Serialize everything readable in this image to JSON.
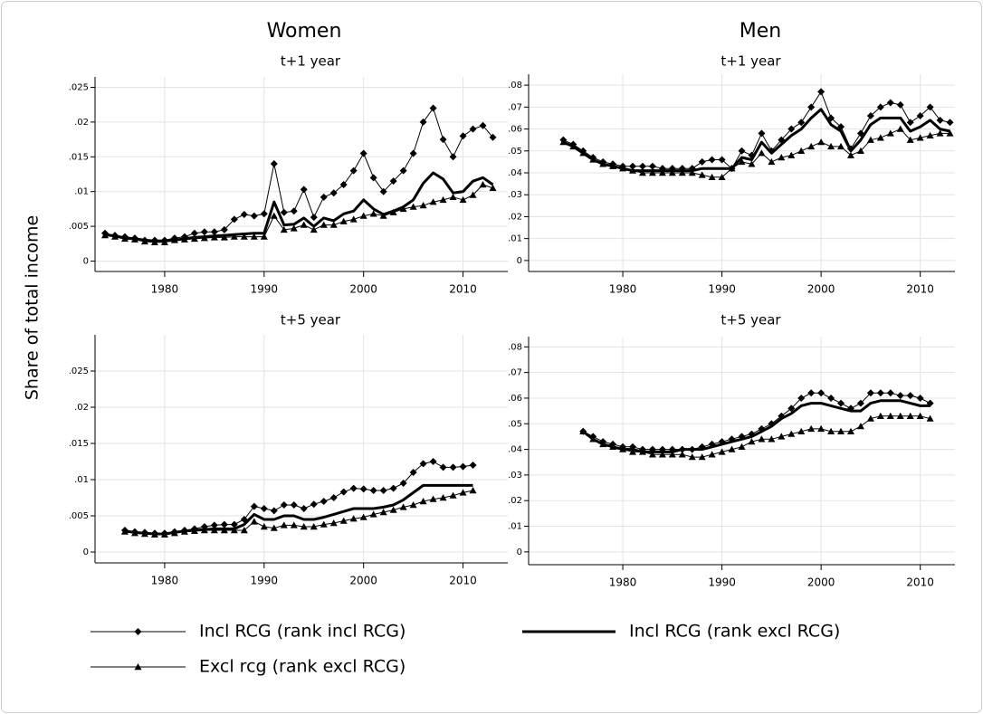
{
  "figure": {
    "column_titles": [
      "Women",
      "Men"
    ],
    "y_label": "Share of total income"
  },
  "chart_data": [
    {
      "type": "line",
      "title": "t+1 year",
      "grid": true,
      "x": [
        1974,
        1975,
        1976,
        1977,
        1978,
        1979,
        1980,
        1981,
        1982,
        1983,
        1984,
        1985,
        1986,
        1987,
        1988,
        1989,
        1990,
        1991,
        1992,
        1993,
        1994,
        1995,
        1996,
        1997,
        1998,
        1999,
        2000,
        2001,
        2002,
        2003,
        2004,
        2005,
        2006,
        2007,
        2008,
        2009,
        2010,
        2011,
        2012,
        2013
      ],
      "xlim": [
        1973,
        2014.5
      ],
      "xticks": [
        1980,
        1990,
        2000,
        2010
      ],
      "ylim": [
        -0.0015,
        0.0265
      ],
      "yticks": [
        0,
        {
          "value": 0.005,
          "label": ".005"
        },
        {
          "value": 0.01,
          "label": ".01"
        },
        {
          "value": 0.015,
          "label": ".015"
        },
        {
          "value": 0.02,
          "label": ".02"
        },
        {
          "value": 0.025,
          "label": ".025"
        }
      ],
      "series": [
        {
          "name": "Incl RCG (rank incl RCG)",
          "color": "#000000",
          "marker": "diamond",
          "line_width": 1,
          "values": [
            0.004,
            0.0037,
            0.0035,
            0.0033,
            0.003,
            0.003,
            0.003,
            0.0033,
            0.0035,
            0.004,
            0.0042,
            0.0042,
            0.0045,
            0.006,
            0.0067,
            0.0065,
            0.0068,
            0.014,
            0.007,
            0.0072,
            0.0103,
            0.0063,
            0.0092,
            0.0098,
            0.011,
            0.013,
            0.0155,
            0.012,
            0.01,
            0.0115,
            0.013,
            0.0155,
            0.02,
            0.022,
            0.0175,
            0.015,
            0.018,
            0.019,
            0.0195,
            0.0178
          ]
        },
        {
          "name": "Incl RCG (rank excl RCG)",
          "color": "#000000",
          "marker": "none",
          "line_width": 3,
          "values": [
            0.0038,
            0.0036,
            0.0033,
            0.0032,
            0.003,
            0.0029,
            0.0029,
            0.003,
            0.0032,
            0.0034,
            0.0035,
            0.0036,
            0.0037,
            0.0038,
            0.0039,
            0.004,
            0.004,
            0.0085,
            0.0052,
            0.0053,
            0.0062,
            0.005,
            0.0062,
            0.0058,
            0.0068,
            0.0072,
            0.0088,
            0.0075,
            0.0067,
            0.0072,
            0.0078,
            0.0088,
            0.0112,
            0.0127,
            0.0118,
            0.0098,
            0.01,
            0.0115,
            0.012,
            0.011
          ]
        },
        {
          "name": "Excl rcg (rank excl RCG)",
          "color": "#000000",
          "marker": "triangle",
          "line_width": 1,
          "values": [
            0.0037,
            0.0035,
            0.0032,
            0.0031,
            0.0028,
            0.0027,
            0.0027,
            0.003,
            0.0031,
            0.0032,
            0.0033,
            0.0034,
            0.0034,
            0.0035,
            0.0035,
            0.0035,
            0.0035,
            0.0065,
            0.0045,
            0.0047,
            0.0052,
            0.0045,
            0.0052,
            0.0052,
            0.0057,
            0.006,
            0.0065,
            0.0068,
            0.0065,
            0.007,
            0.0075,
            0.0078,
            0.008,
            0.0085,
            0.0088,
            0.0092,
            0.0088,
            0.0095,
            0.011,
            0.0105
          ]
        }
      ]
    },
    {
      "type": "line",
      "title": "t+1 year",
      "grid": true,
      "x": [
        1974,
        1975,
        1976,
        1977,
        1978,
        1979,
        1980,
        1981,
        1982,
        1983,
        1984,
        1985,
        1986,
        1987,
        1988,
        1989,
        1990,
        1991,
        1992,
        1993,
        1994,
        1995,
        1996,
        1997,
        1998,
        1999,
        2000,
        2001,
        2002,
        2003,
        2004,
        2005,
        2006,
        2007,
        2008,
        2009,
        2010,
        2011,
        2012,
        2013
      ],
      "xlim": [
        1970.5,
        2013.5
      ],
      "xticks": [
        1980,
        1990,
        2000,
        2010
      ],
      "ylim": [
        -0.005,
        0.085
      ],
      "yticks": [
        0,
        {
          "value": 0.01,
          "label": ".01"
        },
        {
          "value": 0.02,
          "label": ".02"
        },
        {
          "value": 0.03,
          "label": ".03"
        },
        {
          "value": 0.04,
          "label": ".04"
        },
        {
          "value": 0.05,
          "label": ".05"
        },
        {
          "value": 0.06,
          "label": ".06"
        },
        {
          "value": 0.07,
          "label": ".07"
        },
        {
          "value": 0.08,
          "label": ".08"
        }
      ],
      "series": [
        {
          "name": "Incl RCG (rank incl RCG)",
          "color": "#000000",
          "marker": "diamond",
          "line_width": 1,
          "values": [
            0.055,
            0.053,
            0.05,
            0.047,
            0.045,
            0.044,
            0.043,
            0.043,
            0.043,
            0.043,
            0.042,
            0.042,
            0.042,
            0.042,
            0.045,
            0.046,
            0.046,
            0.042,
            0.05,
            0.048,
            0.058,
            0.05,
            0.055,
            0.06,
            0.063,
            0.07,
            0.077,
            0.065,
            0.061,
            0.051,
            0.058,
            0.066,
            0.07,
            0.072,
            0.071,
            0.063,
            0.066,
            0.07,
            0.064,
            0.063
          ]
        },
        {
          "name": "Incl RCG (rank excl RCG)",
          "color": "#000000",
          "marker": "none",
          "line_width": 3,
          "values": [
            0.054,
            0.052,
            0.049,
            0.046,
            0.044,
            0.043,
            0.042,
            0.041,
            0.041,
            0.041,
            0.041,
            0.041,
            0.041,
            0.041,
            0.042,
            0.042,
            0.042,
            0.042,
            0.047,
            0.046,
            0.054,
            0.049,
            0.053,
            0.057,
            0.06,
            0.065,
            0.069,
            0.062,
            0.059,
            0.05,
            0.055,
            0.062,
            0.065,
            0.065,
            0.065,
            0.059,
            0.061,
            0.064,
            0.06,
            0.059
          ]
        },
        {
          "name": "Excl rcg (rank excl RCG)",
          "color": "#000000",
          "marker": "triangle",
          "line_width": 1,
          "values": [
            0.054,
            0.052,
            0.049,
            0.046,
            0.044,
            0.043,
            0.042,
            0.041,
            0.04,
            0.04,
            0.04,
            0.04,
            0.04,
            0.04,
            0.039,
            0.038,
            0.038,
            0.042,
            0.045,
            0.044,
            0.049,
            0.045,
            0.047,
            0.048,
            0.05,
            0.052,
            0.054,
            0.052,
            0.052,
            0.048,
            0.05,
            0.055,
            0.056,
            0.058,
            0.06,
            0.055,
            0.056,
            0.057,
            0.058,
            0.058
          ]
        }
      ]
    },
    {
      "type": "line",
      "title": "t+5 year",
      "grid": true,
      "x": [
        1976,
        1977,
        1978,
        1979,
        1980,
        1981,
        1982,
        1983,
        1984,
        1985,
        1986,
        1987,
        1988,
        1989,
        1990,
        1991,
        1992,
        1993,
        1994,
        1995,
        1996,
        1997,
        1998,
        1999,
        2000,
        2001,
        2002,
        2003,
        2004,
        2005,
        2006,
        2007,
        2008,
        2009,
        2010,
        2011
      ],
      "xlim": [
        1973,
        2014.5
      ],
      "xticks": [
        1980,
        1990,
        2000,
        2010
      ],
      "ylim": [
        -0.0015,
        0.03
      ],
      "yticks": [
        0,
        {
          "value": 0.005,
          "label": ".005"
        },
        {
          "value": 0.01,
          "label": ".01"
        },
        {
          "value": 0.015,
          "label": ".015"
        },
        {
          "value": 0.02,
          "label": ".02"
        },
        {
          "value": 0.025,
          "label": ".025"
        }
      ],
      "series": [
        {
          "name": "Incl RCG (rank incl RCG)",
          "color": "#000000",
          "marker": "diamond",
          "line_width": 1,
          "values": [
            0.003,
            0.0028,
            0.0027,
            0.0026,
            0.0026,
            0.0028,
            0.003,
            0.0032,
            0.0035,
            0.0037,
            0.0038,
            0.0038,
            0.0045,
            0.0063,
            0.006,
            0.0057,
            0.0065,
            0.0065,
            0.006,
            0.0066,
            0.007,
            0.0075,
            0.0083,
            0.0088,
            0.0087,
            0.0085,
            0.0085,
            0.0088,
            0.0095,
            0.011,
            0.0122,
            0.0125,
            0.0117,
            0.0117,
            0.0118,
            0.012
          ]
        },
        {
          "name": "Incl RCG (rank excl RCG)",
          "color": "#000000",
          "marker": "none",
          "line_width": 3,
          "values": [
            0.0029,
            0.0027,
            0.0026,
            0.0025,
            0.0025,
            0.0027,
            0.0029,
            0.003,
            0.0031,
            0.0032,
            0.0032,
            0.0032,
            0.0038,
            0.0052,
            0.0045,
            0.0045,
            0.005,
            0.005,
            0.0045,
            0.0045,
            0.0048,
            0.0052,
            0.0056,
            0.006,
            0.006,
            0.006,
            0.0062,
            0.0065,
            0.0072,
            0.0082,
            0.0092,
            0.0092,
            0.0092,
            0.0092,
            0.0092,
            0.0092
          ]
        },
        {
          "name": "Excl rcg (rank excl RCG)",
          "color": "#000000",
          "marker": "triangle",
          "line_width": 1,
          "values": [
            0.0028,
            0.0026,
            0.0025,
            0.0024,
            0.0024,
            0.0026,
            0.0028,
            0.0029,
            0.003,
            0.003,
            0.003,
            0.003,
            0.003,
            0.0042,
            0.0035,
            0.0033,
            0.0037,
            0.0037,
            0.0035,
            0.0035,
            0.0038,
            0.004,
            0.0043,
            0.0046,
            0.0048,
            0.0052,
            0.0055,
            0.0058,
            0.0062,
            0.0065,
            0.007,
            0.0073,
            0.0075,
            0.0078,
            0.0082,
            0.0085
          ]
        }
      ]
    },
    {
      "type": "line",
      "title": "t+5 year",
      "grid": true,
      "x": [
        1976,
        1977,
        1978,
        1979,
        1980,
        1981,
        1982,
        1983,
        1984,
        1985,
        1986,
        1987,
        1988,
        1989,
        1990,
        1991,
        1992,
        1993,
        1994,
        1995,
        1996,
        1997,
        1998,
        1999,
        2000,
        2001,
        2002,
        2003,
        2004,
        2005,
        2006,
        2007,
        2008,
        2009,
        2010,
        2011
      ],
      "xlim": [
        1970.5,
        2013.5
      ],
      "xticks": [
        1980,
        1990,
        2000,
        2010
      ],
      "ylim": [
        -0.005,
        0.084
      ],
      "yticks": [
        0,
        {
          "value": 0.01,
          "label": ".01"
        },
        {
          "value": 0.02,
          "label": ".02"
        },
        {
          "value": 0.03,
          "label": ".03"
        },
        {
          "value": 0.04,
          "label": ".04"
        },
        {
          "value": 0.05,
          "label": ".05"
        },
        {
          "value": 0.06,
          "label": ".06"
        },
        {
          "value": 0.07,
          "label": ".07"
        },
        {
          "value": 0.08,
          "label": ".08"
        }
      ],
      "series": [
        {
          "name": "Incl RCG (rank incl RCG)",
          "color": "#000000",
          "marker": "diamond",
          "line_width": 1,
          "values": [
            0.047,
            0.045,
            0.043,
            0.042,
            0.041,
            0.041,
            0.04,
            0.04,
            0.04,
            0.04,
            0.04,
            0.04,
            0.041,
            0.042,
            0.043,
            0.044,
            0.045,
            0.046,
            0.048,
            0.05,
            0.053,
            0.056,
            0.06,
            0.062,
            0.062,
            0.06,
            0.058,
            0.056,
            0.058,
            0.062,
            0.062,
            0.062,
            0.061,
            0.061,
            0.06,
            0.058
          ]
        },
        {
          "name": "Incl RCG (rank excl RCG)",
          "color": "#000000",
          "marker": "none",
          "line_width": 3,
          "values": [
            0.047,
            0.044,
            0.042,
            0.041,
            0.04,
            0.04,
            0.039,
            0.039,
            0.039,
            0.039,
            0.04,
            0.04,
            0.04,
            0.041,
            0.042,
            0.043,
            0.044,
            0.045,
            0.047,
            0.049,
            0.052,
            0.054,
            0.057,
            0.058,
            0.058,
            0.057,
            0.056,
            0.055,
            0.055,
            0.058,
            0.059,
            0.059,
            0.059,
            0.058,
            0.057,
            0.057
          ]
        },
        {
          "name": "Excl rcg (rank excl RCG)",
          "color": "#000000",
          "marker": "triangle",
          "line_width": 1,
          "values": [
            0.047,
            0.044,
            0.042,
            0.041,
            0.04,
            0.039,
            0.039,
            0.038,
            0.038,
            0.038,
            0.038,
            0.037,
            0.037,
            0.038,
            0.039,
            0.04,
            0.041,
            0.043,
            0.044,
            0.044,
            0.045,
            0.046,
            0.047,
            0.048,
            0.048,
            0.047,
            0.047,
            0.047,
            0.049,
            0.052,
            0.053,
            0.053,
            0.053,
            0.053,
            0.053,
            0.052
          ]
        }
      ]
    }
  ]
}
